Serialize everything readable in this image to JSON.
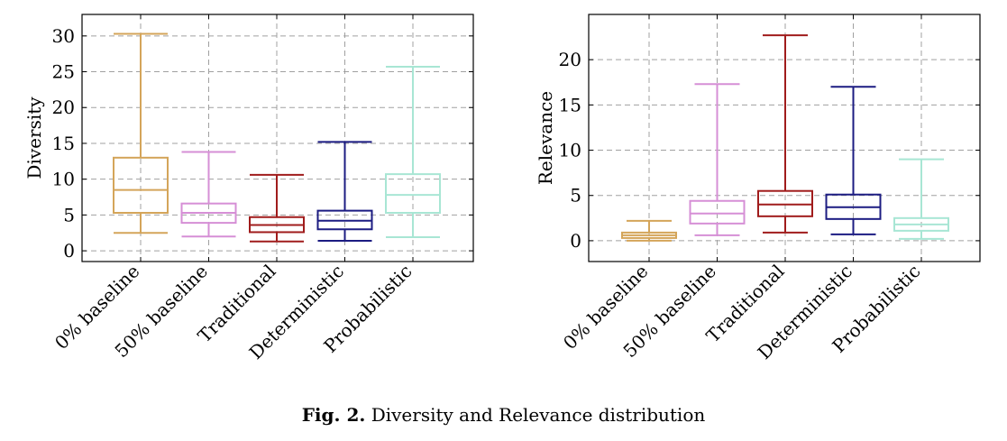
{
  "caption": {
    "label": "Fig. 2.",
    "text": "Diversity and Relevance distribution"
  },
  "chart_data": [
    {
      "type": "box",
      "ylabel": "Diversity",
      "ylim": [
        -1.5,
        33
      ],
      "yticks": [
        0,
        5,
        10,
        15,
        20,
        25,
        30
      ],
      "grid": true,
      "categories": [
        "0% baseline",
        "50% baseline",
        "Traditional",
        "Deterministic",
        "Probabilistic"
      ],
      "colors": [
        "#d4a55a",
        "#d68fd6",
        "#a01c1c",
        "#1c1c82",
        "#a8e6d4"
      ],
      "boxes": [
        {
          "min": 2.5,
          "q1": 5.3,
          "median": 8.5,
          "q3": 13.0,
          "max": 30.3
        },
        {
          "min": 2.0,
          "q1": 3.9,
          "median": 5.3,
          "q3": 6.6,
          "max": 13.8
        },
        {
          "min": 1.3,
          "q1": 2.6,
          "median": 3.6,
          "q3": 4.7,
          "max": 10.6
        },
        {
          "min": 1.4,
          "q1": 3.0,
          "median": 4.2,
          "q3": 5.6,
          "max": 15.2
        },
        {
          "min": 1.9,
          "q1": 5.3,
          "median": 7.8,
          "q3": 10.7,
          "max": 25.7
        }
      ]
    },
    {
      "type": "box",
      "ylabel": "Relevance",
      "ylim": [
        -2.3,
        25
      ],
      "yticks": [
        0,
        5,
        10,
        15,
        20
      ],
      "grid": true,
      "categories": [
        "0% baseline",
        "50% baseline",
        "Traditional",
        "Deterministic",
        "Probabilistic"
      ],
      "colors": [
        "#d4a55a",
        "#d68fd6",
        "#a01c1c",
        "#1c1c82",
        "#a8e6d4"
      ],
      "boxes": [
        {
          "min": 0.0,
          "q1": 0.3,
          "median": 0.6,
          "q3": 0.9,
          "max": 2.2
        },
        {
          "min": 0.6,
          "q1": 1.9,
          "median": 3.0,
          "q3": 4.4,
          "max": 17.3
        },
        {
          "min": 0.9,
          "q1": 2.7,
          "median": 4.0,
          "q3": 5.5,
          "max": 22.7
        },
        {
          "min": 0.7,
          "q1": 2.4,
          "median": 3.7,
          "q3": 5.1,
          "max": 17.0
        },
        {
          "min": 0.2,
          "q1": 1.1,
          "median": 1.8,
          "q3": 2.5,
          "max": 9.0
        }
      ]
    }
  ]
}
